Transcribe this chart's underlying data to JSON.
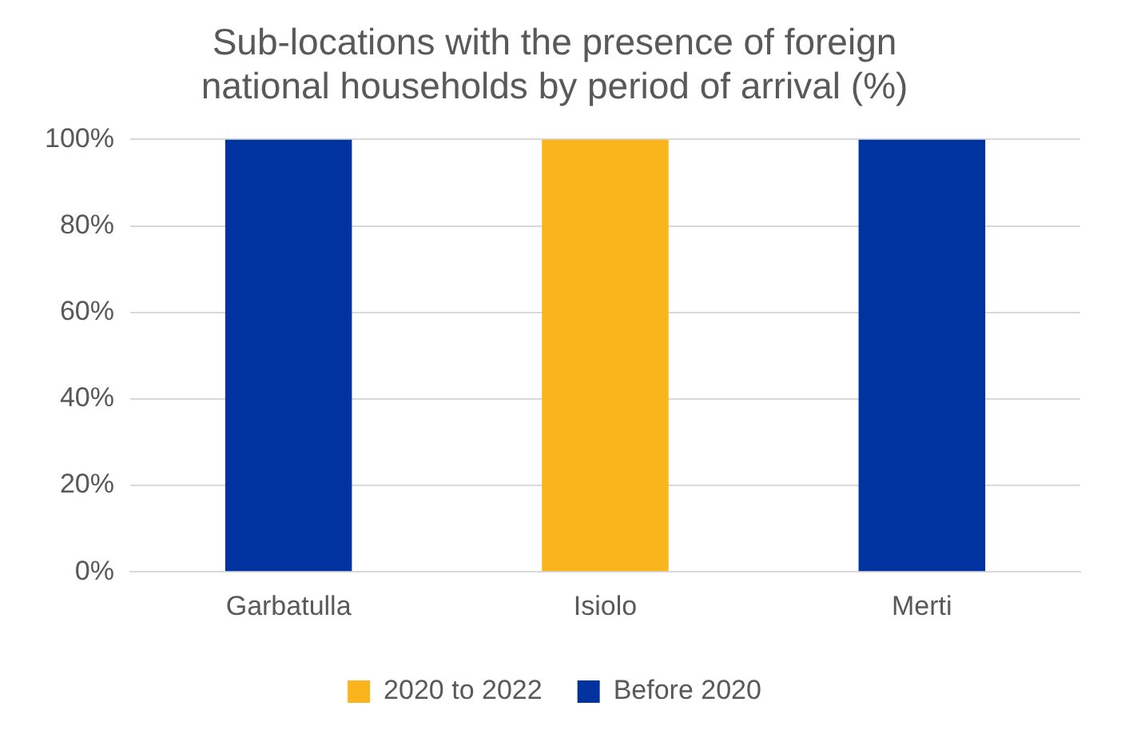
{
  "chart_data": {
    "type": "bar",
    "title": "Sub-locations with the presence of foreign national households by period of arrival (%)",
    "categories": [
      "Garbatulla",
      "Isiolo",
      "Merti"
    ],
    "stacked": true,
    "series": [
      {
        "name": "2020 to 2022",
        "color": "#fbb51c",
        "values": [
          0,
          100,
          0
        ]
      },
      {
        "name": "Before 2020",
        "color": "#0033a0",
        "values": [
          100,
          0,
          100
        ]
      }
    ],
    "ylim": [
      0,
      100
    ],
    "yticks": [
      {
        "value": 0,
        "label": "0%"
      },
      {
        "value": 20,
        "label": "20%"
      },
      {
        "value": 40,
        "label": "40%"
      },
      {
        "value": 60,
        "label": "60%"
      },
      {
        "value": 80,
        "label": "80%"
      },
      {
        "value": 100,
        "label": "100%"
      }
    ],
    "grid": "y",
    "legend": "bottom"
  }
}
